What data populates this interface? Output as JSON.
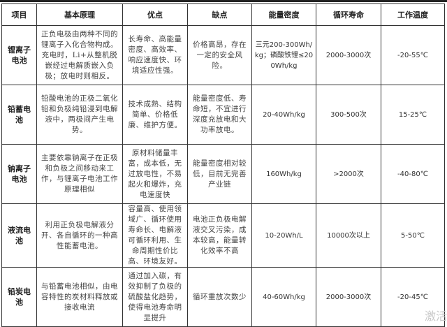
{
  "headers": [
    "项目",
    "基本原理",
    "优点",
    "缺点",
    "能量密度",
    "循环寿命",
    "工作温度"
  ],
  "rows": [
    {
      "name": "锂离子电池",
      "principle": "正负电极由两种不同的锂离子入化合物构成。充电时，Li+从整机脱嵌经过电解质嵌入负极；放电时则相反。",
      "pros": "长寿命、高能量密度、高效率、响应速度快、环境适应性强。",
      "cons": "价格高昂，存在一定的安全风险。",
      "energy": "三元200-300Wh/kg；磷酸铁锂≤200Wh/kg",
      "cycle": "2000-3000次",
      "temp": "-20-55℃"
    },
    {
      "name": "铅蓄电池",
      "principle": "铅酸电池的正极二氧化铅和负极纯铅浸到电解液中，两极间产生电势。",
      "pros": "技术成熟、结构简单、价格低廉、维护方便。",
      "cons": "能量密度低、寿命短，不宜进行深度充放电和大功率放电。",
      "energy": "20-40Wh/kg",
      "cycle": "300-500次",
      "temp": "15-25℃"
    },
    {
      "name": "钠离子电池",
      "principle": "主要依靠钠离子在正极和负极之间移动来工作，与锂离子电池工作原理相似",
      "pros": "原材料储量丰富，成本低，无过放电性，不易起火和爆炸，充电速度快",
      "cons": "能量密度相对较低，目前无完善产业链",
      "energy": "160Wh/kg",
      "cycle": ">2000次",
      "temp": "-40-80℃"
    },
    {
      "name": "液流电池",
      "principle": "利用正负极电解液分开、各自循环的一种高性能蓄电池。",
      "pros": "容量高、使用领域广、循环使用寿命长、电解液可循环利用、生命周期性价比高、环境友好。",
      "cons": "电池正负极电解液交叉污染，成本较高，能量转化效率不高",
      "energy": "10-20Wh/L",
      "cycle": "10000次以上",
      "temp": "5-50℃"
    },
    {
      "name": "铅炭电池",
      "principle": "与铅蓄电池相似，由电容特性的炭材料释放或接收电流",
      "pros": "通过加入碳，有效抑制了负极的硫酸盐化趋势，使得电池寿命明显提升",
      "cons": "循环重放次数少",
      "energy": "40-60Wh/kg",
      "cycle": "2000-3000次",
      "temp": "-20-45℃"
    }
  ],
  "watermark": "激活"
}
